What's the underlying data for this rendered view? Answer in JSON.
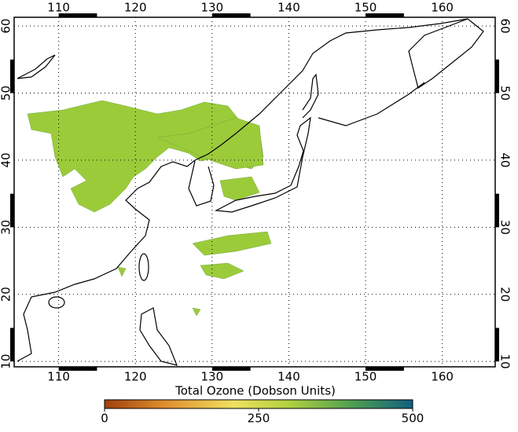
{
  "map": {
    "lon_range": [
      104.2,
      166.9
    ],
    "lat_range": [
      9.2,
      61.3
    ],
    "lon_ticks": [
      110,
      120,
      130,
      140,
      150,
      160
    ],
    "lat_ticks": [
      10,
      20,
      30,
      40,
      50,
      60
    ]
  },
  "colorbar": {
    "title": "Total Ozone (Dobson Units)",
    "range": [
      0,
      500
    ],
    "ticks": [
      0,
      250,
      500
    ]
  }
}
